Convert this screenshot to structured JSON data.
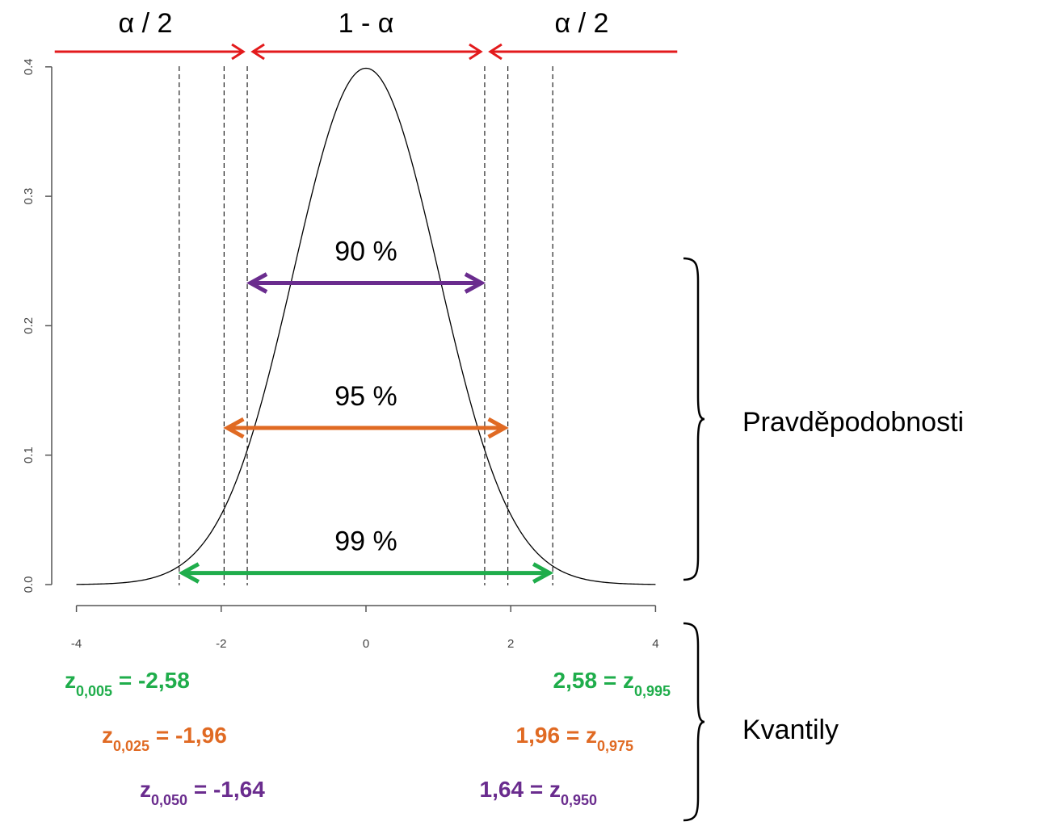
{
  "chart_data": {
    "type": "line",
    "title": "",
    "xlabel": "",
    "ylabel": "",
    "xlim": [
      -4,
      4
    ],
    "ylim": [
      0,
      0.4
    ],
    "x_ticks": [
      -4,
      -2,
      0,
      2,
      4
    ],
    "x_tick_labels": [
      "-4",
      "-2",
      "0",
      "2",
      "4"
    ],
    "y_ticks": [
      0.0,
      0.1,
      0.2,
      0.3,
      0.4
    ],
    "y_tick_labels": [
      "0.0",
      "0.1",
      "0.2",
      "0.3",
      "0.4"
    ],
    "grid": false,
    "curve": {
      "distribution": "standard normal density",
      "mean": 0,
      "sd": 1,
      "x_from": -4,
      "x_to": 4
    },
    "quantile_lines": [
      -2.58,
      -1.96,
      -1.64,
      1.64,
      1.96,
      2.58
    ],
    "region_labels": [
      {
        "text": "α / 2",
        "from": -4.3,
        "to": -1.64,
        "color": "#e31a1c"
      },
      {
        "text": "1 - α",
        "from": -1.64,
        "to": 1.64,
        "color": "#e31a1c"
      },
      {
        "text": "α / 2",
        "from": 1.64,
        "to": 4.3,
        "color": "#e31a1c"
      }
    ],
    "intervals": [
      {
        "label": "90 %",
        "from": -1.64,
        "to": 1.64,
        "y": 0.233,
        "color": "#6a2c8e"
      },
      {
        "label": "95 %",
        "from": -1.96,
        "to": 1.96,
        "y": 0.121,
        "color": "#e06a23"
      },
      {
        "label": "99 %",
        "from": -2.58,
        "to": 2.58,
        "y": 0.009,
        "color": "#1fad4b"
      }
    ],
    "quantiles": [
      {
        "left_main": "z",
        "left_sub": "0,005",
        "left_value": " = -2,58",
        "right_value": "2,58 = z",
        "right_sub": "0,995",
        "color": "#1fad4b"
      },
      {
        "left_main": "z",
        "left_sub": "0,025",
        "left_value": " = -1,96",
        "right_value": "1,96 = z",
        "right_sub": "0,975",
        "color": "#e06a23"
      },
      {
        "left_main": "z",
        "left_sub": "0,050",
        "left_value": " = -1,64",
        "right_value": "1,64 = z",
        "right_sub": "0,950",
        "color": "#6a2c8e"
      }
    ],
    "braces": [
      {
        "label": "Pravděpodobnosti"
      },
      {
        "label": "Kvantily"
      }
    ]
  }
}
